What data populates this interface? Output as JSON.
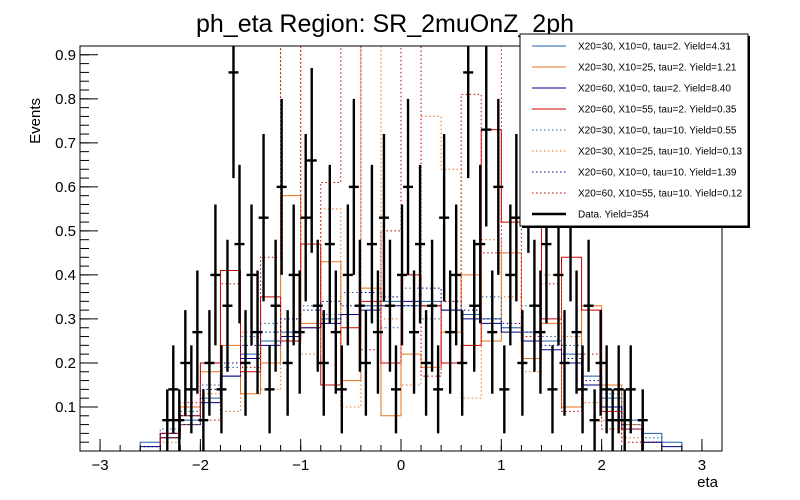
{
  "chart_data": {
    "type": "line",
    "title": "ph_eta Region: SR_2muOnZ_2ph",
    "xlabel": "eta",
    "ylabel": "Events",
    "xlim": [
      -3.2,
      3.2
    ],
    "ylim": [
      0,
      0.92
    ],
    "xticks": [
      -3,
      -2,
      -1,
      0,
      1,
      2,
      3
    ],
    "yticks": [
      0.1,
      0.2,
      0.3,
      0.4,
      0.5,
      0.6,
      0.7,
      0.8,
      0.9
    ],
    "xtick_labels": [
      "−3",
      "−2",
      "−1",
      "0",
      "1",
      "2",
      "3"
    ],
    "ytick_labels": [
      "0.1",
      "0.2",
      "0.3",
      "0.4",
      "0.5",
      "0.6",
      "0.7",
      "0.8",
      "0.9"
    ],
    "grid": false,
    "legend_position": "top-right",
    "bin_edges": [
      -3.0,
      -2.8,
      -2.6,
      -2.4,
      -2.2,
      -2.0,
      -1.8,
      -1.6,
      -1.4,
      -1.2,
      -1.0,
      -0.8,
      -0.6,
      -0.4,
      -0.2,
      0.0,
      0.2,
      0.4,
      0.6,
      0.8,
      1.0,
      1.2,
      1.4,
      1.6,
      1.8,
      2.0,
      2.2,
      2.4,
      2.6,
      2.8,
      3.0
    ],
    "series": [
      {
        "name": "X20=30, X10=0, tau=2. Yield=4.31",
        "color": "#1f5fa8",
        "style": "solid",
        "values": [
          0,
          0,
          0.02,
          0.04,
          0.07,
          0.12,
          0.17,
          0.22,
          0.25,
          0.27,
          0.28,
          0.3,
          0.31,
          0.33,
          0.34,
          0.33,
          0.34,
          0.32,
          0.31,
          0.3,
          0.28,
          0.27,
          0.25,
          0.22,
          0.17,
          0.12,
          0.07,
          0.04,
          0.02,
          0
        ]
      },
      {
        "name": "X20=30, X10=25, tau=2. Yield=1.21",
        "color": "#e8721c",
        "style": "solid",
        "values": [
          0,
          0,
          0,
          0.03,
          0.1,
          0.18,
          0.24,
          0.13,
          0.2,
          0.58,
          0.29,
          0.43,
          0.16,
          0.37,
          0.08,
          0.22,
          0.19,
          0.27,
          0.4,
          0.25,
          0.45,
          0.21,
          0.29,
          0.1,
          0.33,
          0.15,
          0.06,
          0.02,
          0,
          0
        ]
      },
      {
        "name": "X20=60, X10=0, tau=2. Yield=8.40",
        "color": "#000080",
        "style": "solid",
        "values": [
          0,
          0,
          0.01,
          0.03,
          0.06,
          0.11,
          0.17,
          0.21,
          0.24,
          0.26,
          0.28,
          0.29,
          0.31,
          0.32,
          0.33,
          0.34,
          0.33,
          0.32,
          0.3,
          0.29,
          0.27,
          0.25,
          0.23,
          0.2,
          0.15,
          0.1,
          0.05,
          0.02,
          0.01,
          0
        ]
      },
      {
        "name": "X20=60, X10=55, tau=2. Yield=0.35",
        "color": "#cc0000",
        "style": "solid",
        "values": [
          0,
          0,
          0,
          0.04,
          0.08,
          0.2,
          0.41,
          0.18,
          0.35,
          0.25,
          0.47,
          0.15,
          0.28,
          0.34,
          0.2,
          0.4,
          0.33,
          0.2,
          0.24,
          0.73,
          0.52,
          0.67,
          0.3,
          0.44,
          0.32,
          0.09,
          0.05,
          0,
          0,
          0
        ]
      },
      {
        "name": "X20=30, X10=0, tau=10. Yield=0.55",
        "color": "#1f5fa8",
        "style": "dotted",
        "values": [
          0,
          0,
          0.01,
          0.05,
          0.09,
          0.15,
          0.19,
          0.26,
          0.29,
          0.3,
          0.33,
          0.31,
          0.36,
          0.33,
          0.28,
          0.37,
          0.3,
          0.34,
          0.31,
          0.35,
          0.28,
          0.33,
          0.26,
          0.24,
          0.17,
          0.13,
          0.06,
          0.03,
          0,
          0
        ]
      },
      {
        "name": "X20=30, X10=25, tau=10. Yield=0.13",
        "color": "#e8721c",
        "style": "dotted",
        "values": [
          0,
          0,
          0,
          0.02,
          0.06,
          0.13,
          0.09,
          0.27,
          0.14,
          0.92,
          0.22,
          0.55,
          0.1,
          0.92,
          0.3,
          0.15,
          0.76,
          0.64,
          0.12,
          0.48,
          0.35,
          0.18,
          0.4,
          0.26,
          0.11,
          0.07,
          0.03,
          0,
          0,
          0
        ]
      },
      {
        "name": "X20=60, X10=0, tau=10. Yield=1.39",
        "color": "#000080",
        "style": "dotted",
        "values": [
          0,
          0,
          0.01,
          0.04,
          0.08,
          0.14,
          0.2,
          0.24,
          0.27,
          0.3,
          0.32,
          0.34,
          0.33,
          0.36,
          0.35,
          0.33,
          0.37,
          0.34,
          0.32,
          0.3,
          0.29,
          0.27,
          0.24,
          0.21,
          0.16,
          0.1,
          0.05,
          0.02,
          0,
          0
        ]
      },
      {
        "name": "X20=60, X10=55, tau=10. Yield=0.12",
        "color": "#cc0000",
        "style": "dotted",
        "values": [
          0,
          0,
          0,
          0.03,
          0.11,
          0.07,
          0.38,
          0.19,
          0.44,
          0.92,
          0.28,
          0.61,
          0.92,
          0.23,
          0.5,
          0.92,
          0.17,
          0.34,
          0.81,
          0.45,
          0.92,
          0.26,
          0.38,
          0.09,
          0.22,
          0.05,
          0.02,
          0,
          0,
          0
        ]
      }
    ],
    "data_series": {
      "name": "Data. Yield=354",
      "color": "#000000",
      "points": [
        {
          "x": -2.33,
          "y": 0.07,
          "err": 0.07
        },
        {
          "x": -2.27,
          "y": 0.14,
          "err": 0.1
        },
        {
          "x": -2.21,
          "y": 0.07,
          "err": 0.07
        },
        {
          "x": -2.15,
          "y": 0.2,
          "err": 0.12
        },
        {
          "x": -2.09,
          "y": 0.14,
          "err": 0.1
        },
        {
          "x": -2.03,
          "y": 0.27,
          "err": 0.14
        },
        {
          "x": -1.97,
          "y": 0.07,
          "err": 0.07
        },
        {
          "x": -1.91,
          "y": 0.2,
          "err": 0.12
        },
        {
          "x": -1.85,
          "y": 0.4,
          "err": 0.16
        },
        {
          "x": -1.79,
          "y": 0.14,
          "err": 0.1
        },
        {
          "x": -1.73,
          "y": 0.33,
          "err": 0.15
        },
        {
          "x": -1.67,
          "y": 0.86,
          "err": 0.24
        },
        {
          "x": -1.61,
          "y": 0.47,
          "err": 0.18
        },
        {
          "x": -1.55,
          "y": 0.2,
          "err": 0.12
        },
        {
          "x": -1.49,
          "y": 0.4,
          "err": 0.16
        },
        {
          "x": -1.43,
          "y": 0.27,
          "err": 0.14
        },
        {
          "x": -1.37,
          "y": 0.53,
          "err": 0.19
        },
        {
          "x": -1.31,
          "y": 0.14,
          "err": 0.1
        },
        {
          "x": -1.25,
          "y": 0.33,
          "err": 0.15
        },
        {
          "x": -1.19,
          "y": 0.6,
          "err": 0.2
        },
        {
          "x": -1.13,
          "y": 0.2,
          "err": 0.12
        },
        {
          "x": -1.07,
          "y": 0.4,
          "err": 0.16
        },
        {
          "x": -1.01,
          "y": 0.27,
          "err": 0.14
        },
        {
          "x": -0.95,
          "y": 0.53,
          "err": 0.19
        },
        {
          "x": -0.89,
          "y": 0.66,
          "err": 0.21
        },
        {
          "x": -0.83,
          "y": 0.33,
          "err": 0.15
        },
        {
          "x": -0.77,
          "y": 0.2,
          "err": 0.12
        },
        {
          "x": -0.71,
          "y": 0.47,
          "err": 0.18
        },
        {
          "x": -0.65,
          "y": 0.27,
          "err": 0.14
        },
        {
          "x": -0.59,
          "y": 0.14,
          "err": 0.1
        },
        {
          "x": -0.53,
          "y": 0.4,
          "err": 0.16
        },
        {
          "x": -0.47,
          "y": 0.6,
          "err": 0.2
        },
        {
          "x": -0.41,
          "y": 0.33,
          "err": 0.15
        },
        {
          "x": -0.35,
          "y": 0.2,
          "err": 0.12
        },
        {
          "x": -0.29,
          "y": 0.47,
          "err": 0.18
        },
        {
          "x": -0.23,
          "y": 0.27,
          "err": 0.14
        },
        {
          "x": -0.17,
          "y": 0.53,
          "err": 0.19
        },
        {
          "x": -0.11,
          "y": 0.33,
          "err": 0.15
        },
        {
          "x": -0.05,
          "y": 0.14,
          "err": 0.1
        },
        {
          "x": 0.01,
          "y": 0.4,
          "err": 0.16
        },
        {
          "x": 0.07,
          "y": 0.6,
          "err": 0.2
        },
        {
          "x": 0.13,
          "y": 0.27,
          "err": 0.14
        },
        {
          "x": 0.19,
          "y": 0.47,
          "err": 0.18
        },
        {
          "x": 0.25,
          "y": 0.2,
          "err": 0.12
        },
        {
          "x": 0.31,
          "y": 0.33,
          "err": 0.15
        },
        {
          "x": 0.37,
          "y": 0.14,
          "err": 0.1
        },
        {
          "x": 0.43,
          "y": 0.53,
          "err": 0.19
        },
        {
          "x": 0.49,
          "y": 0.27,
          "err": 0.14
        },
        {
          "x": 0.55,
          "y": 0.4,
          "err": 0.16
        },
        {
          "x": 0.61,
          "y": 0.2,
          "err": 0.12
        },
        {
          "x": 0.67,
          "y": 0.86,
          "err": 0.24
        },
        {
          "x": 0.73,
          "y": 0.33,
          "err": 0.15
        },
        {
          "x": 0.79,
          "y": 0.47,
          "err": 0.18
        },
        {
          "x": 0.85,
          "y": 0.73,
          "err": 0.22
        },
        {
          "x": 0.91,
          "y": 0.27,
          "err": 0.14
        },
        {
          "x": 0.97,
          "y": 0.6,
          "err": 0.2
        },
        {
          "x": 1.03,
          "y": 0.14,
          "err": 0.1
        },
        {
          "x": 1.09,
          "y": 0.4,
          "err": 0.16
        },
        {
          "x": 1.15,
          "y": 0.53,
          "err": 0.19
        },
        {
          "x": 1.21,
          "y": 0.2,
          "err": 0.12
        },
        {
          "x": 1.27,
          "y": 0.66,
          "err": 0.21
        },
        {
          "x": 1.33,
          "y": 0.33,
          "err": 0.15
        },
        {
          "x": 1.39,
          "y": 0.27,
          "err": 0.14
        },
        {
          "x": 1.45,
          "y": 0.47,
          "err": 0.18
        },
        {
          "x": 1.51,
          "y": 0.14,
          "err": 0.1
        },
        {
          "x": 1.57,
          "y": 0.4,
          "err": 0.16
        },
        {
          "x": 1.63,
          "y": 0.2,
          "err": 0.12
        },
        {
          "x": 1.69,
          "y": 0.53,
          "err": 0.19
        },
        {
          "x": 1.75,
          "y": 0.27,
          "err": 0.14
        },
        {
          "x": 1.81,
          "y": 0.14,
          "err": 0.1
        },
        {
          "x": 1.87,
          "y": 0.33,
          "err": 0.15
        },
        {
          "x": 1.93,
          "y": 0.07,
          "err": 0.07
        },
        {
          "x": 1.99,
          "y": 0.2,
          "err": 0.12
        },
        {
          "x": 2.05,
          "y": 0.14,
          "err": 0.1
        },
        {
          "x": 2.11,
          "y": 0.07,
          "err": 0.07
        },
        {
          "x": 2.17,
          "y": 0.14,
          "err": 0.1
        },
        {
          "x": 2.23,
          "y": 0.07,
          "err": 0.07
        },
        {
          "x": 2.29,
          "y": 0.14,
          "err": 0.1
        },
        {
          "x": 2.41,
          "y": 0.07,
          "err": 0.07
        }
      ]
    }
  }
}
